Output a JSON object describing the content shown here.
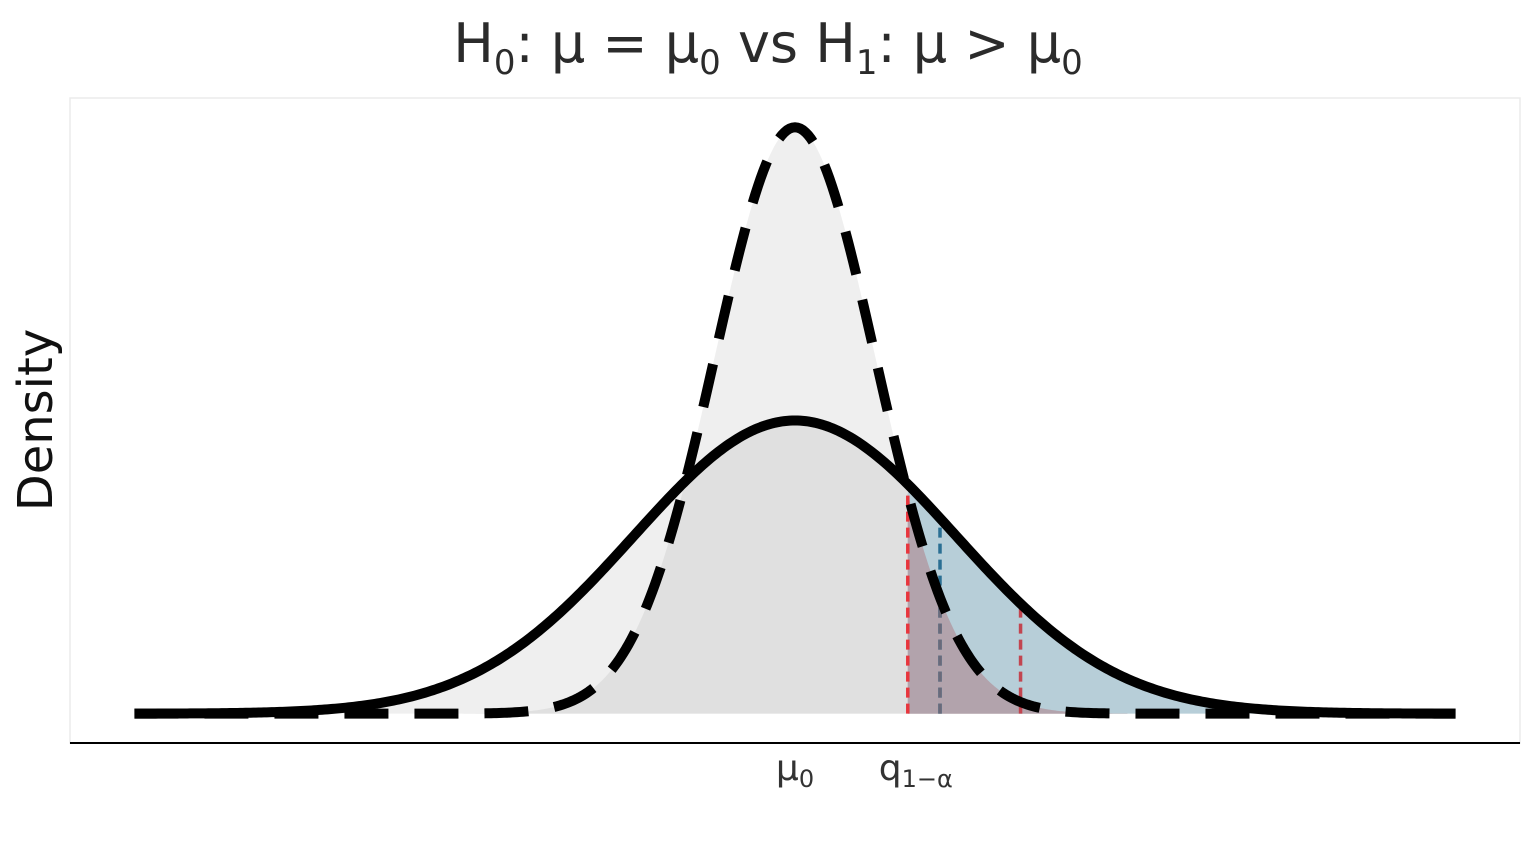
{
  "chart_data": {
    "type": "area",
    "title": {
      "h0": "H",
      "h0_sub": "0",
      "h0_rest": ": μ = μ",
      "mu0_sub": "0",
      "vs": " vs H",
      "h1_sub": "1",
      "h1_rest": ": μ > μ",
      "mu0_sub2": "0"
    },
    "ylabel": "Density",
    "xlabel": "",
    "x_ticks": [
      {
        "main": "μ",
        "sub": "0",
        "x": 0
      },
      {
        "main": "q",
        "sub": "1−α",
        "x": 0.7
      }
    ],
    "xlim": [
      -4.5,
      4.5
    ],
    "ylim": [
      -0.05,
      1.05
    ],
    "series": [
      {
        "style": "dashed",
        "mean": 0,
        "sd": 0.5
      },
      {
        "style": "solid",
        "mean": 0,
        "sd": 1
      }
    ],
    "critical_value": 0.7,
    "reference_lines": [
      0.7,
      0.9,
      1.4
    ],
    "colors": {
      "fill_light": "#efefef",
      "fill_overlap": "#e0e0e0",
      "alpha_region": "#e8a9ac",
      "power_region": "#b3cbd6",
      "tail_overlap": "#b2a0aa",
      "curve": "#000000",
      "line_red": "#e8353d",
      "line_blue": "#2a6f93",
      "line_mid": "#6a6a7a",
      "line_darkred": "#c24550",
      "axis": "#000000",
      "panel_border": "#ebebeb"
    },
    "grid": false
  }
}
